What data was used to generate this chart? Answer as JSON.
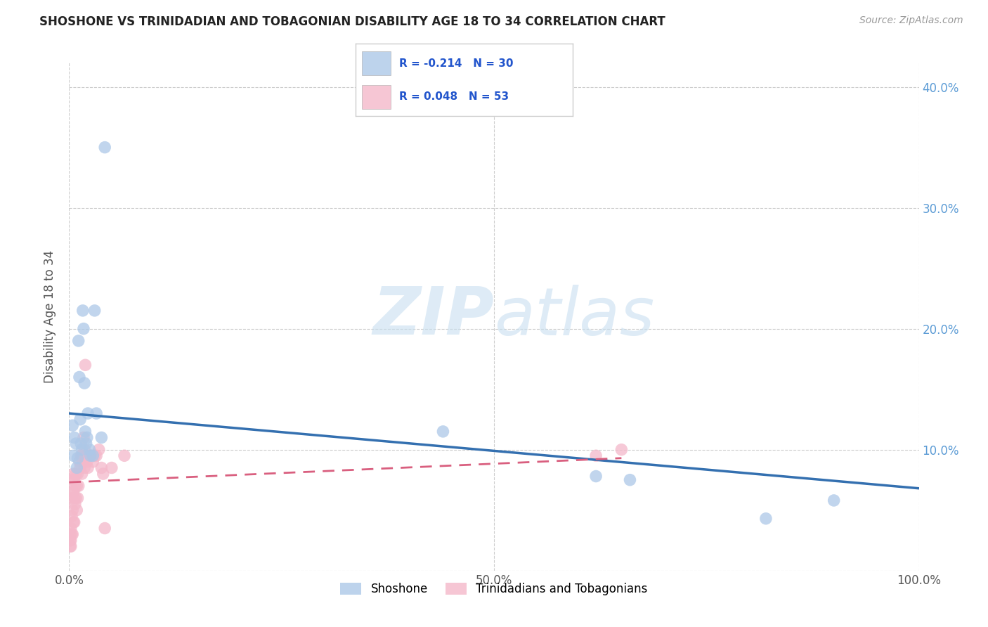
{
  "title": "SHOSHONE VS TRINIDADIAN AND TOBAGONIAN DISABILITY AGE 18 TO 34 CORRELATION CHART",
  "source": "Source: ZipAtlas.com",
  "ylabel": "Disability Age 18 to 34",
  "watermark_part1": "ZIP",
  "watermark_part2": "atlas",
  "xlim": [
    0,
    1.0
  ],
  "ylim": [
    0,
    0.42
  ],
  "xticks": [
    0.0,
    0.5,
    1.0
  ],
  "xticklabels": [
    "0.0%",
    "50.0%",
    "100.0%"
  ],
  "yticks": [
    0.0,
    0.1,
    0.2,
    0.3,
    0.4
  ],
  "right_yticklabels": [
    "",
    "10.0%",
    "20.0%",
    "30.0%",
    "40.0%"
  ],
  "grid_yticks": [
    0.0,
    0.1,
    0.2,
    0.3,
    0.4
  ],
  "grid_color": "#cccccc",
  "background_color": "#ffffff",
  "shoshone_color": "#adc8e8",
  "trinidadian_color": "#f4b8ca",
  "shoshone_line_color": "#3470b0",
  "trinidadian_line_color": "#d95f7f",
  "legend_R_shoshone": "-0.214",
  "legend_N_shoshone": "30",
  "legend_R_trinidadian": "0.048",
  "legend_N_trinidadian": "53",
  "shoshone_x": [
    0.004,
    0.005,
    0.006,
    0.008,
    0.009,
    0.01,
    0.011,
    0.012,
    0.013,
    0.014,
    0.015,
    0.016,
    0.017,
    0.018,
    0.019,
    0.02,
    0.021,
    0.022,
    0.024,
    0.025,
    0.028,
    0.03,
    0.032,
    0.038,
    0.042,
    0.44,
    0.62,
    0.66,
    0.82,
    0.9
  ],
  "shoshone_y": [
    0.12,
    0.095,
    0.11,
    0.105,
    0.085,
    0.093,
    0.19,
    0.16,
    0.125,
    0.105,
    0.1,
    0.215,
    0.2,
    0.155,
    0.115,
    0.105,
    0.11,
    0.13,
    0.1,
    0.095,
    0.095,
    0.215,
    0.13,
    0.11,
    0.35,
    0.115,
    0.078,
    0.075,
    0.043,
    0.058
  ],
  "trinidadian_x": [
    0.001,
    0.001,
    0.001,
    0.002,
    0.002,
    0.002,
    0.003,
    0.003,
    0.003,
    0.004,
    0.004,
    0.004,
    0.004,
    0.005,
    0.005,
    0.005,
    0.006,
    0.006,
    0.006,
    0.007,
    0.007,
    0.008,
    0.008,
    0.009,
    0.009,
    0.01,
    0.01,
    0.011,
    0.012,
    0.013,
    0.014,
    0.015,
    0.015,
    0.016,
    0.017,
    0.018,
    0.018,
    0.019,
    0.02,
    0.021,
    0.022,
    0.025,
    0.028,
    0.03,
    0.032,
    0.035,
    0.038,
    0.04,
    0.042,
    0.05,
    0.065,
    0.62,
    0.65
  ],
  "trinidadian_y": [
    0.03,
    0.025,
    0.02,
    0.035,
    0.025,
    0.02,
    0.06,
    0.045,
    0.03,
    0.075,
    0.065,
    0.05,
    0.03,
    0.08,
    0.065,
    0.04,
    0.075,
    0.06,
    0.04,
    0.07,
    0.055,
    0.08,
    0.06,
    0.07,
    0.05,
    0.08,
    0.06,
    0.07,
    0.09,
    0.085,
    0.095,
    0.095,
    0.08,
    0.09,
    0.11,
    0.1,
    0.085,
    0.17,
    0.095,
    0.09,
    0.085,
    0.095,
    0.09,
    0.095,
    0.095,
    0.1,
    0.085,
    0.08,
    0.035,
    0.085,
    0.095,
    0.095,
    0.1
  ],
  "shoshone_line_x": [
    0.0,
    1.0
  ],
  "shoshone_line_y": [
    0.13,
    0.068
  ],
  "trinidadian_line_x": [
    0.0,
    0.65
  ],
  "trinidadian_line_y": [
    0.073,
    0.093
  ]
}
